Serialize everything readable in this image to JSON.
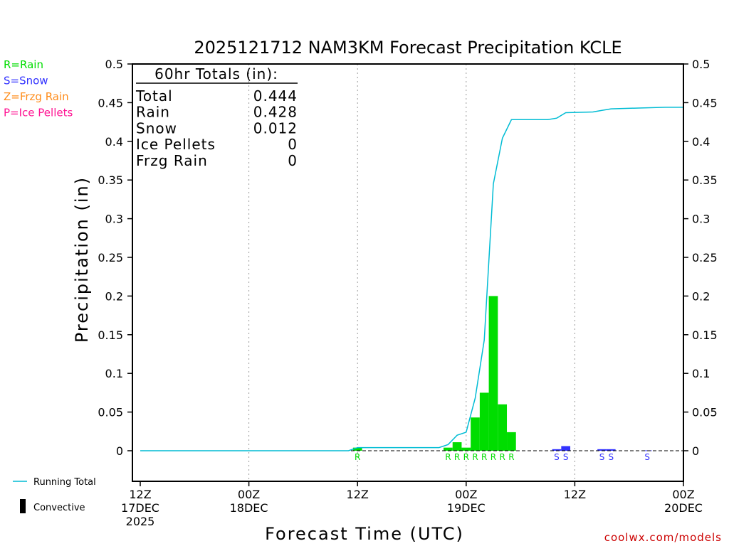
{
  "chart_data": {
    "type": "bar",
    "title": "2025121712 NAM3KM Forecast Precipitation KCLE",
    "xlabel": "Forecast Time (UTC)",
    "ylabel": "Precipitation (in)",
    "ylim": [
      -0.04,
      0.5
    ],
    "xlim_hours": [
      0,
      60
    ],
    "y_ticks": [
      0,
      0.05,
      0.1,
      0.15,
      0.2,
      0.25,
      0.3,
      0.35,
      0.4,
      0.45,
      0.5
    ],
    "y_tick_labels": [
      "0",
      "0.05",
      "0.1",
      "0.15",
      "0.2",
      "0.25",
      "0.3",
      "0.35",
      "0.4",
      "0.45",
      "0.5"
    ],
    "x_ticks": [
      {
        "hour": 0,
        "lines": [
          "12Z",
          "17DEC",
          "2025"
        ]
      },
      {
        "hour": 12,
        "lines": [
          "00Z",
          "18DEC"
        ]
      },
      {
        "hour": 24,
        "lines": [
          "12Z"
        ]
      },
      {
        "hour": 36,
        "lines": [
          "00Z",
          "19DEC"
        ]
      },
      {
        "hour": 48,
        "lines": [
          "12Z"
        ]
      },
      {
        "hour": 60,
        "lines": [
          "00Z",
          "20DEC"
        ]
      }
    ],
    "grid": "vertical dotted",
    "bars": [
      {
        "hour": 24,
        "value": 0.004,
        "type": "R"
      },
      {
        "hour": 34,
        "value": 0.004,
        "type": "R"
      },
      {
        "hour": 35,
        "value": 0.011,
        "type": "R"
      },
      {
        "hour": 36,
        "value": 0.004,
        "type": "R"
      },
      {
        "hour": 37,
        "value": 0.043,
        "type": "R"
      },
      {
        "hour": 38,
        "value": 0.075,
        "type": "R"
      },
      {
        "hour": 39,
        "value": 0.2,
        "type": "R"
      },
      {
        "hour": 40,
        "value": 0.06,
        "type": "R"
      },
      {
        "hour": 41,
        "value": 0.024,
        "type": "R"
      },
      {
        "hour": 46,
        "value": 0.002,
        "type": "S"
      },
      {
        "hour": 47,
        "value": 0.006,
        "type": "S"
      },
      {
        "hour": 51,
        "value": 0.002,
        "type": "S"
      },
      {
        "hour": 52,
        "value": 0.002,
        "type": "S"
      },
      {
        "hour": 56,
        "value": 0.0005,
        "type": "S"
      }
    ],
    "running_total": [
      {
        "hour": 0,
        "value": 0
      },
      {
        "hour": 23,
        "value": 0
      },
      {
        "hour": 24,
        "value": 0.004
      },
      {
        "hour": 33,
        "value": 0.004
      },
      {
        "hour": 34,
        "value": 0.008
      },
      {
        "hour": 35,
        "value": 0.02
      },
      {
        "hour": 36,
        "value": 0.024
      },
      {
        "hour": 37,
        "value": 0.068
      },
      {
        "hour": 38,
        "value": 0.143
      },
      {
        "hour": 39,
        "value": 0.345
      },
      {
        "hour": 40,
        "value": 0.404
      },
      {
        "hour": 41,
        "value": 0.428
      },
      {
        "hour": 45,
        "value": 0.428
      },
      {
        "hour": 46,
        "value": 0.43
      },
      {
        "hour": 47,
        "value": 0.437
      },
      {
        "hour": 50,
        "value": 0.438
      },
      {
        "hour": 51,
        "value": 0.44
      },
      {
        "hour": 52,
        "value": 0.442
      },
      {
        "hour": 55,
        "value": 0.443
      },
      {
        "hour": 58,
        "value": 0.444
      },
      {
        "hour": 60,
        "value": 0.444
      }
    ],
    "precip_markers": [
      {
        "hour": 24,
        "type": "R"
      },
      {
        "hour": 34,
        "type": "R"
      },
      {
        "hour": 35,
        "type": "R"
      },
      {
        "hour": 36,
        "type": "R"
      },
      {
        "hour": 37,
        "type": "R"
      },
      {
        "hour": 38,
        "type": "R"
      },
      {
        "hour": 39,
        "type": "R"
      },
      {
        "hour": 40,
        "type": "R"
      },
      {
        "hour": 41,
        "type": "R"
      },
      {
        "hour": 46,
        "type": "S"
      },
      {
        "hour": 47,
        "type": "S"
      },
      {
        "hour": 51,
        "type": "S"
      },
      {
        "hour": 52,
        "type": "S"
      },
      {
        "hour": 56,
        "type": "S"
      }
    ],
    "totals": {
      "header": "60hr Totals (in):",
      "rows": [
        {
          "label": "Total",
          "value": "0.444"
        },
        {
          "label": "Rain",
          "value": "0.428"
        },
        {
          "label": "Snow",
          "value": "0.012"
        },
        {
          "label": "Ice Pellets",
          "value": "0"
        },
        {
          "label": "Frzg Rain",
          "value": "0"
        }
      ]
    },
    "type_legend": [
      {
        "code": "R",
        "text": "R=Rain",
        "color": "#00dd00"
      },
      {
        "code": "S",
        "text": "S=Snow",
        "color": "#3333ff"
      },
      {
        "code": "Z",
        "text": "Z=Frzg Rain",
        "color": "#ff8c1a"
      },
      {
        "code": "P",
        "text": "P=Ice Pellets",
        "color": "#ff1493"
      }
    ],
    "bottom_legend": [
      {
        "key": "running",
        "text": "Running Total",
        "color": "#00bcd4"
      },
      {
        "key": "convective",
        "text": "Convective",
        "color": "#000000"
      }
    ],
    "credit": "coolwx.com/models"
  }
}
